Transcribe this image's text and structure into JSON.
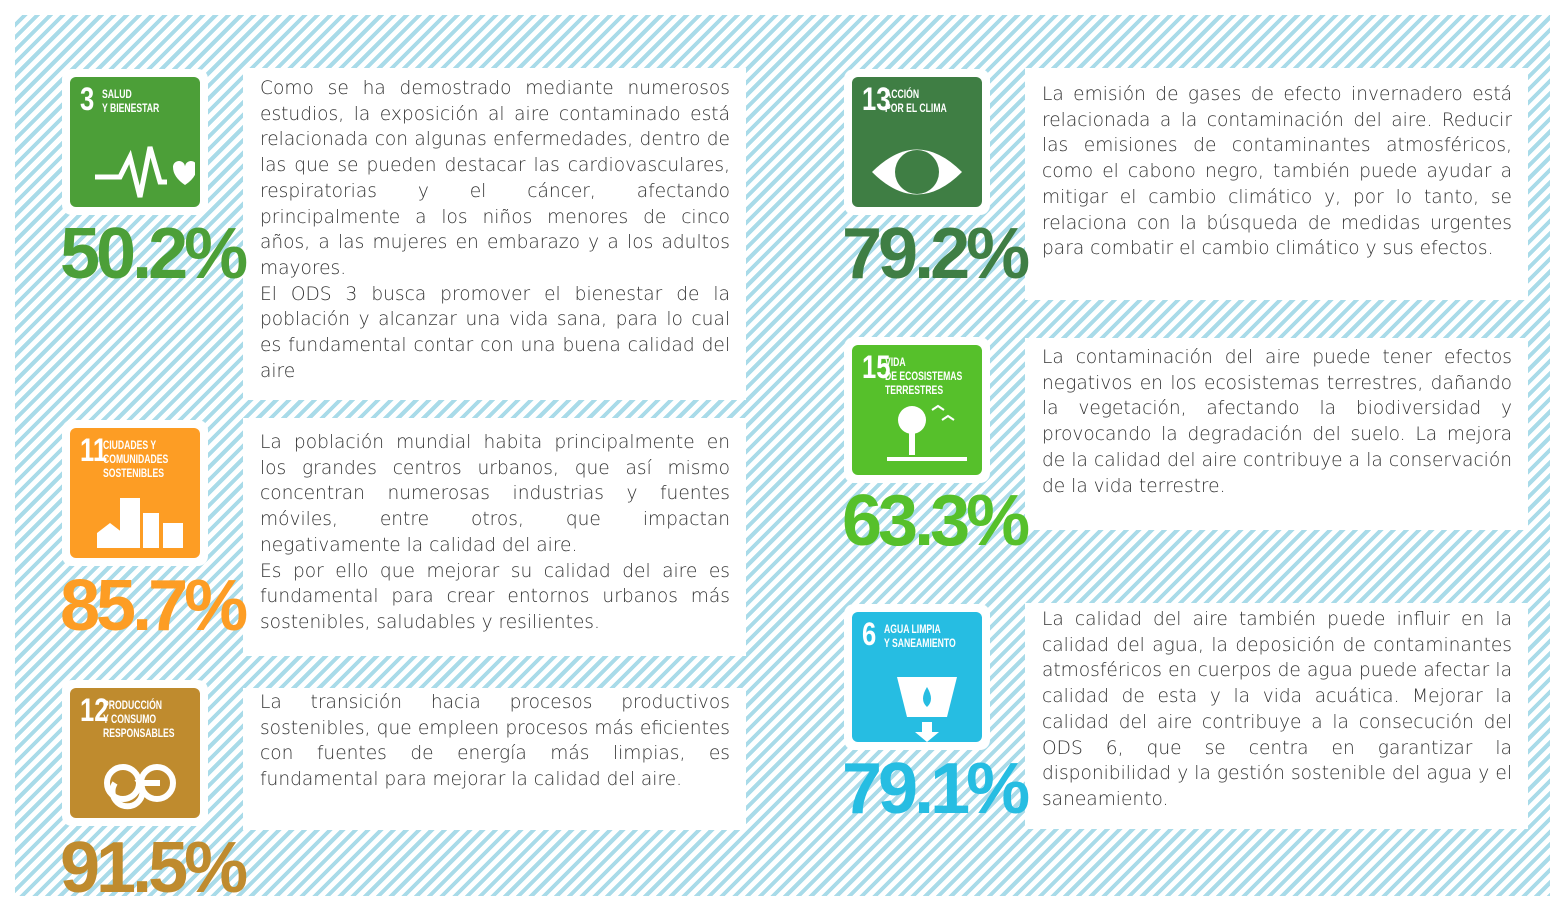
{
  "items": [
    {
      "number": "3",
      "title": [
        "SALUD",
        "Y BIENESTAR"
      ],
      "percent": "50.2%",
      "paragraphs": [
        "Como se ha demostrado mediante numerosos estudios, la exposición al aire contaminado está relacionada con algunas enfermedades, dentro de las que se pueden destacar las cardiovasculares, respiratorias y el cáncer, afectando principalmente a los niños menores de cinco años, a las mujeres en embarazo y a los adultos mayores.",
        "El ODS 3 busca promover el bienestar de la población y alcanzar una vida sana, para lo cual es fundamental contar con una buena calidad del aire"
      ]
    },
    {
      "number": "11",
      "title": [
        "CIUDADES Y",
        "COMUNIDADES",
        "SOSTENIBLES"
      ],
      "percent": "85.7%",
      "paragraphs": [
        "La población mundial habita principalmente en los grandes centros urbanos, que así mismo concentran numerosas industrias y fuentes móviles, entre otros, que impactan negativamente la calidad del aire.",
        "Es por ello que mejorar su calidad del aire es fundamental para crear entornos urbanos más sostenibles, saludables y resilientes."
      ]
    },
    {
      "number": "12",
      "title": [
        "PRODUCCIÓN",
        "Y CONSUMO",
        "RESPONSABLES"
      ],
      "percent": "91.5%",
      "paragraphs": [
        "La transición hacia procesos productivos sostenibles, que empleen procesos más eficientes con  fuentes de energía más limpias, es fundamental para mejorar la calidad del aire."
      ]
    },
    {
      "number": "13",
      "title": [
        "ACCIÓN",
        "POR EL CLIMA"
      ],
      "percent": "79.2%",
      "paragraphs": [
        "La emisión de gases de efecto invernadero está relacionada a la contaminación del aire. Reducir las emisiones de contaminantes atmosféricos, como el cabono negro, también puede ayudar a mitigar el cambio climático y, por lo tanto, se relaciona con la búsqueda de medidas urgentes para combatir el cambio climático y sus efectos."
      ]
    },
    {
      "number": "15",
      "title": [
        "VIDA",
        "DE ECOSISTEMAS",
        "TERRESTRES"
      ],
      "percent": "63.3%",
      "paragraphs": [
        "La contaminación del aire puede tener efectos negativos en los ecosistemas terrestres, dañando la vegetación, afectando la biodiversidad y provocando la degradación del suelo. La mejora de la calidad del aire contribuye a la conservación de la vida terrestre."
      ]
    },
    {
      "number": "6",
      "title": [
        "AGUA LIMPIA",
        "Y SANEAMIENTO"
      ],
      "percent": "79.1%",
      "paragraphs": [
        "La calidad del aire también puede influir en la calidad del agua, la deposición de contaminantes atmosféricos en cuerpos de agua puede afectar la calidad de esta y la vida acuática. Mejorar la calidad del aire contribuye a la consecución del ODS 6, que se centra en garantizar la disponibilidad y la gestión sostenible del agua y el saneamiento."
      ]
    }
  ]
}
